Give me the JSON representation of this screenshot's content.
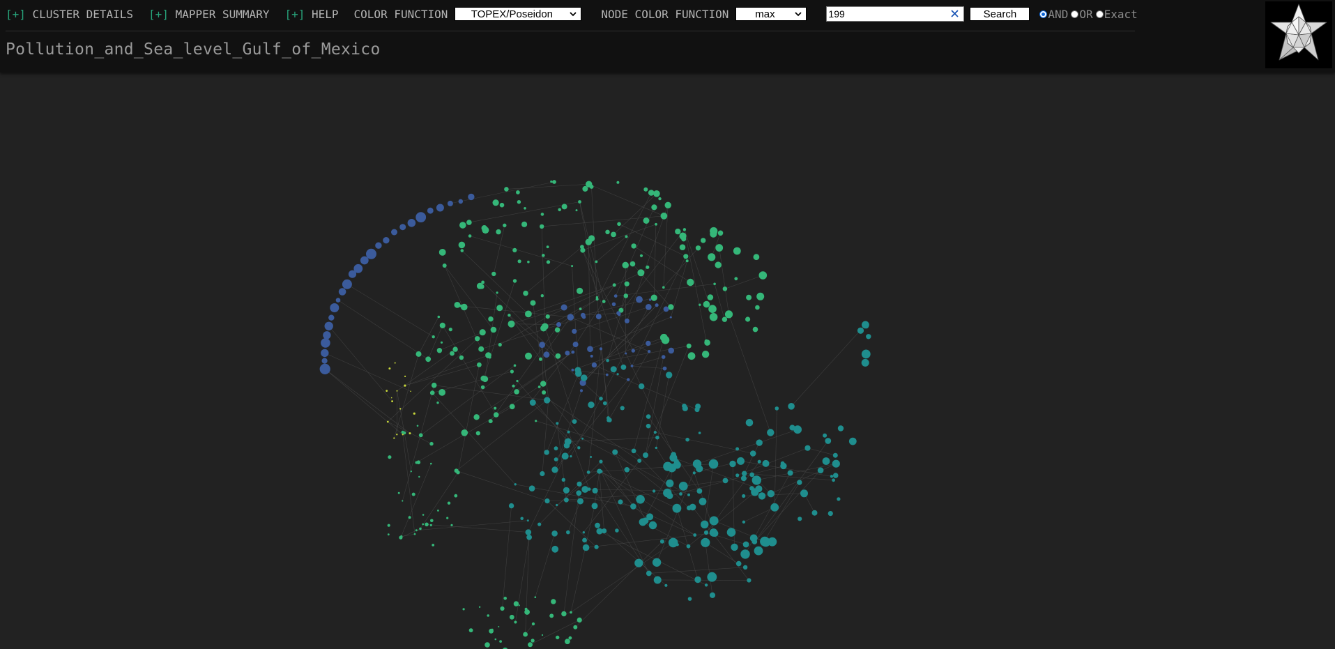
{
  "toolbar": {
    "plus": "[+]",
    "cluster_details": "CLUSTER DETAILS",
    "mapper_summary": "MAPPER SUMMARY",
    "help": "HELP",
    "color_function_label": "COLOR FUNCTION",
    "color_function_value": "TOPEX/Poseidon",
    "node_color_function_label": "NODE COLOR FUNCTION",
    "node_color_function_value": "max",
    "search_value": "199",
    "search_button": "Search",
    "radio_and": "AND",
    "radio_or": "OR",
    "radio_exact": "Exact",
    "radio_selected": "AND"
  },
  "page": {
    "title": "Pollution_and_Sea_level_Gulf_of_Mexico"
  },
  "icons": {
    "dropdown": "chevron-down-icon",
    "clear": "close-icon",
    "logo": "polyhedron-logo-icon"
  },
  "colors": {
    "background": "#222222",
    "header": "#111111",
    "accent": "#27a37a",
    "node_blue": "#3b5b9c",
    "node_teal": "#1f8e8e",
    "node_green": "#35b779",
    "node_yellow": "#c8d83a",
    "edge": "#555555"
  }
}
